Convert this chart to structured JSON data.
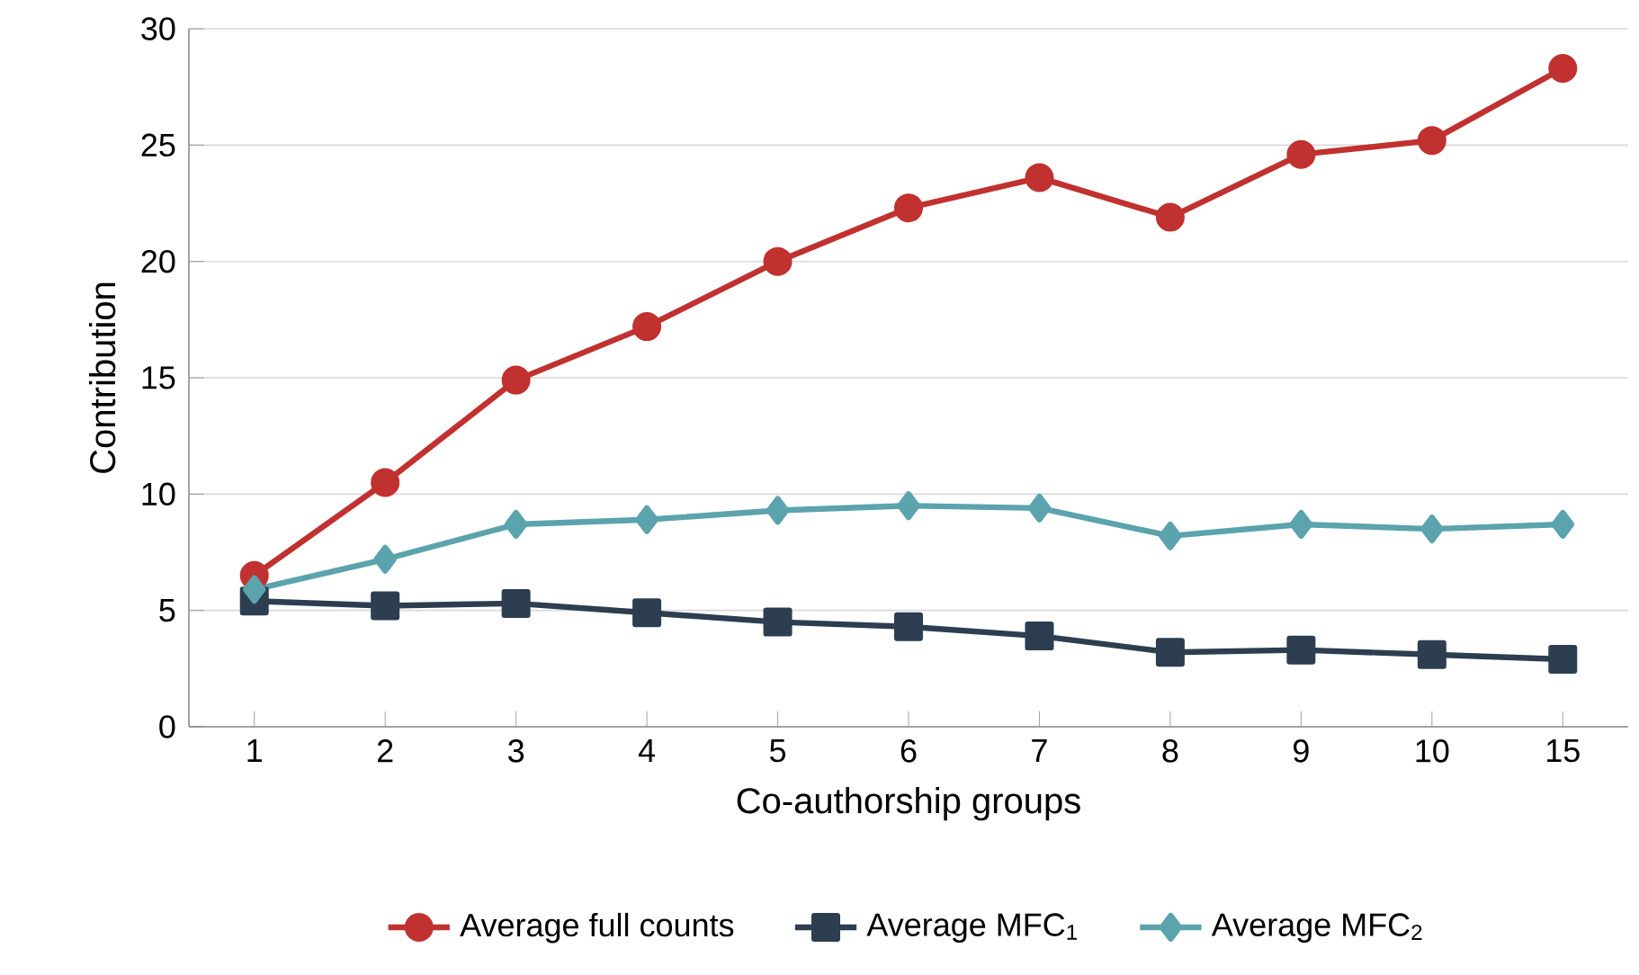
{
  "chart_data": {
    "type": "line",
    "xlabel": "Co-authorship groups",
    "ylabel": "Contribution",
    "categories": [
      "1",
      "2",
      "3",
      "4",
      "5",
      "6",
      "7",
      "8",
      "9",
      "10",
      "15"
    ],
    "series": [
      {
        "name": "Average full counts",
        "color": "#c0312f",
        "marker": "circle",
        "values": [
          6.5,
          10.5,
          14.9,
          17.2,
          20.0,
          22.3,
          23.6,
          21.9,
          24.6,
          25.2,
          28.3
        ]
      },
      {
        "name": "Average MFC$_{1}$",
        "color": "#2c3e50",
        "marker": "square",
        "values": [
          5.4,
          5.2,
          5.3,
          4.9,
          4.5,
          4.3,
          3.9,
          3.2,
          3.3,
          3.1,
          2.9
        ]
      },
      {
        "name": "Average MFC$_{2}$",
        "color": "#5ba3ad",
        "marker": "diamond",
        "values": [
          5.9,
          7.2,
          8.7,
          8.9,
          9.3,
          9.5,
          9.4,
          8.2,
          8.7,
          8.5,
          8.7
        ]
      }
    ],
    "ylim": [
      0,
      30
    ],
    "yticks": [
      0,
      5,
      10,
      15,
      20,
      25,
      30
    ],
    "grid": "y",
    "legend": "bottom",
    "line_style": "solid"
  }
}
